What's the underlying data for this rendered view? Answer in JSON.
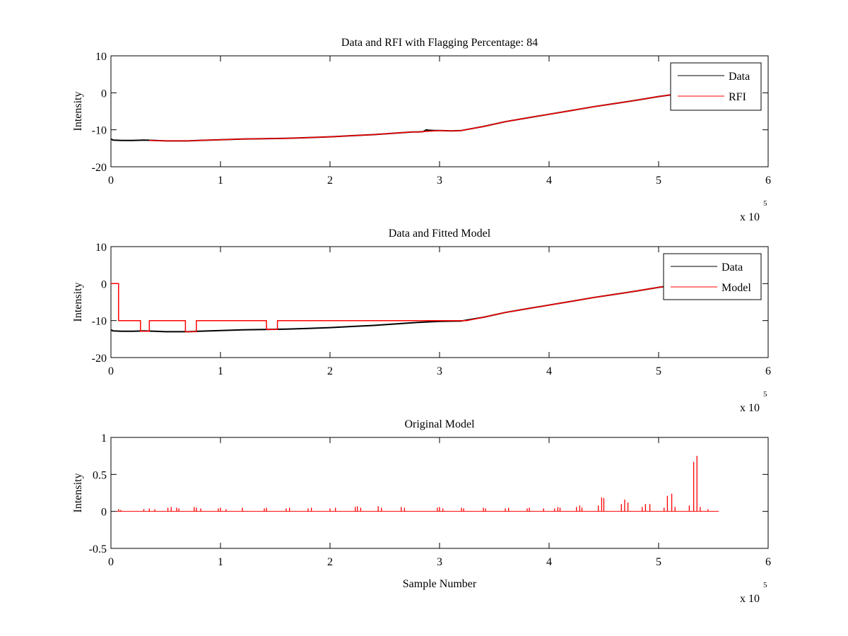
{
  "figure": {
    "panels": 3
  },
  "chart_data": [
    {
      "type": "line",
      "title": "Data and RFI with Flagging Percentage: 84",
      "xlabel": "",
      "ylabel": "Intensity",
      "xlim": [
        0,
        6
      ],
      "ylim": [
        -20,
        10
      ],
      "xticks": [
        "0",
        "1",
        "2",
        "3",
        "4",
        "5",
        "6"
      ],
      "yticks": [
        "-20",
        "-10",
        "0",
        "10"
      ],
      "x_exponent_base": "x 10",
      "x_exponent_power": "5",
      "legend": {
        "placement": "top-right"
      },
      "series": [
        {
          "name": "Data",
          "color": "#000000",
          "x": [
            0,
            0.02,
            0.1,
            0.2,
            0.3,
            0.4,
            0.5,
            0.6,
            0.7,
            0.8,
            1.0,
            1.2,
            1.4,
            1.6,
            1.8,
            2.0,
            2.2,
            2.4,
            2.6,
            2.75,
            2.8,
            2.85,
            2.88,
            2.9,
            2.95,
            3.0,
            3.1,
            3.2,
            3.4,
            3.6,
            3.8,
            4.0,
            4.2,
            4.4,
            4.6,
            4.8,
            5.0,
            5.1,
            5.15
          ],
          "y": [
            -12.5,
            -12.8,
            -12.9,
            -12.9,
            -12.8,
            -12.9,
            -13.0,
            -13.0,
            -13.0,
            -12.9,
            -12.7,
            -12.5,
            -12.4,
            -12.3,
            -12.1,
            -11.9,
            -11.6,
            -11.3,
            -10.9,
            -10.6,
            -10.6,
            -10.5,
            -10.0,
            -10.1,
            -10.2,
            -10.2,
            -10.3,
            -10.2,
            -9.1,
            -7.8,
            -6.8,
            -5.8,
            -4.8,
            -3.8,
            -2.9,
            -2.0,
            -1.0,
            -0.6,
            -0.5
          ]
        },
        {
          "name": "RFI",
          "color": "#ff0000",
          "x": [
            0.35,
            0.5,
            0.6,
            0.7,
            0.8,
            1.0,
            1.2,
            1.4,
            1.6,
            1.8,
            2.0,
            2.2,
            2.4,
            2.6,
            2.75,
            2.8,
            2.85,
            3.0,
            3.1,
            3.2,
            3.4,
            3.6,
            3.8,
            4.0,
            4.2,
            4.4,
            4.6,
            4.8,
            5.0,
            5.1,
            5.15
          ],
          "y": [
            -12.9,
            -13.0,
            -13.0,
            -13.0,
            -12.9,
            -12.7,
            -12.5,
            -12.4,
            -12.3,
            -12.1,
            -11.9,
            -11.6,
            -11.3,
            -10.9,
            -10.6,
            -10.6,
            -10.5,
            -10.2,
            -10.3,
            -10.2,
            -9.1,
            -7.8,
            -6.8,
            -5.8,
            -4.8,
            -3.8,
            -2.9,
            -2.0,
            -1.0,
            -0.6,
            -0.5
          ]
        }
      ]
    },
    {
      "type": "line",
      "title": "Data and Fitted Model",
      "xlabel": "",
      "ylabel": "Intensity",
      "xlim": [
        0,
        6
      ],
      "ylim": [
        -20,
        10
      ],
      "xticks": [
        "0",
        "1",
        "2",
        "3",
        "4",
        "5",
        "6"
      ],
      "yticks": [
        "-20",
        "-10",
        "0",
        "10"
      ],
      "x_exponent_base": "x 10",
      "x_exponent_power": "5",
      "legend": {
        "placement": "top-right"
      },
      "series": [
        {
          "name": "Data",
          "color": "#000000",
          "x": [
            0,
            0.02,
            0.1,
            0.2,
            0.3,
            0.4,
            0.5,
            0.6,
            0.7,
            0.8,
            1.0,
            1.2,
            1.4,
            1.6,
            1.8,
            2.0,
            2.2,
            2.4,
            2.6,
            2.8,
            3.0,
            3.2,
            3.4,
            3.6,
            3.8,
            4.0,
            4.2,
            4.4,
            4.6,
            4.8,
            5.0,
            5.1
          ],
          "y": [
            -12.5,
            -12.8,
            -12.9,
            -12.9,
            -12.8,
            -12.9,
            -13.0,
            -13.0,
            -13.0,
            -12.9,
            -12.7,
            -12.5,
            -12.4,
            -12.3,
            -12.1,
            -11.9,
            -11.6,
            -11.3,
            -10.9,
            -10.5,
            -10.2,
            -10.1,
            -9.1,
            -7.8,
            -6.8,
            -5.8,
            -4.8,
            -3.8,
            -2.9,
            -2.0,
            -1.0,
            -0.6
          ]
        },
        {
          "name": "Model",
          "color": "#ff0000",
          "x": [
            0,
            0.07,
            0.07,
            0.27,
            0.27,
            0.35,
            0.35,
            0.68,
            0.68,
            0.78,
            0.78,
            1.42,
            1.42,
            1.52,
            1.52,
            3.25,
            3.4,
            3.6,
            3.8,
            4.0,
            4.2,
            4.4,
            4.6,
            4.8,
            5.0,
            5.1
          ],
          "y": [
            0,
            0,
            -10,
            -10,
            -12.9,
            -12.9,
            -10,
            -10,
            -13.0,
            -13.0,
            -10,
            -10,
            -12.4,
            -12.4,
            -10,
            -10,
            -9.1,
            -7.8,
            -6.8,
            -5.8,
            -4.8,
            -3.8,
            -2.9,
            -2.0,
            -1.0,
            -0.6
          ]
        }
      ]
    },
    {
      "type": "line",
      "title": "Original Model",
      "xlabel": "Sample Number",
      "ylabel": "Intensity",
      "xlim": [
        0,
        6
      ],
      "ylim": [
        -0.5,
        1
      ],
      "xticks": [
        "0",
        "1",
        "2",
        "3",
        "4",
        "5",
        "6"
      ],
      "yticks": [
        "-0.5",
        "0",
        "0.5",
        "1"
      ],
      "x_exponent_base": "x 10",
      "x_exponent_power": "5",
      "baseline": {
        "x_start": 0.05,
        "x_end": 5.55,
        "y": 0
      },
      "series": [
        {
          "color": "#ff0000",
          "spikes_x": [
            0.07,
            0.09,
            0.3,
            0.35,
            0.4,
            0.52,
            0.55,
            0.6,
            0.62,
            0.76,
            0.78,
            0.82,
            0.98,
            1.0,
            1.05,
            1.2,
            1.4,
            1.42,
            1.6,
            1.63,
            1.8,
            1.83,
            2.0,
            2.05,
            2.23,
            2.25,
            2.28,
            2.44,
            2.47,
            2.65,
            2.68,
            2.98,
            3.0,
            3.03,
            3.2,
            3.22,
            3.4,
            3.42,
            3.6,
            3.63,
            3.8,
            3.82,
            3.95,
            4.05,
            4.08,
            4.1,
            4.25,
            4.28,
            4.3,
            4.45,
            4.48,
            4.5,
            4.66,
            4.69,
            4.72,
            4.85,
            4.88,
            4.92,
            5.05,
            5.08,
            5.12,
            5.15,
            5.28,
            5.32,
            5.35,
            5.38,
            5.45
          ],
          "spikes_y": [
            0.03,
            0.02,
            0.03,
            0.04,
            0.03,
            0.05,
            0.06,
            0.05,
            0.04,
            0.06,
            0.05,
            0.04,
            0.04,
            0.05,
            0.03,
            0.05,
            0.04,
            0.05,
            0.04,
            0.05,
            0.04,
            0.05,
            0.04,
            0.05,
            0.06,
            0.07,
            0.05,
            0.07,
            0.05,
            0.06,
            0.05,
            0.05,
            0.06,
            0.04,
            0.05,
            0.04,
            0.05,
            0.04,
            0.04,
            0.05,
            0.04,
            0.05,
            0.04,
            0.04,
            0.06,
            0.05,
            0.06,
            0.08,
            0.05,
            0.08,
            0.19,
            0.18,
            0.1,
            0.16,
            0.12,
            0.06,
            0.1,
            0.1,
            0.05,
            0.21,
            0.24,
            0.06,
            0.08,
            0.67,
            0.75,
            0.06,
            0.03
          ]
        }
      ]
    }
  ]
}
